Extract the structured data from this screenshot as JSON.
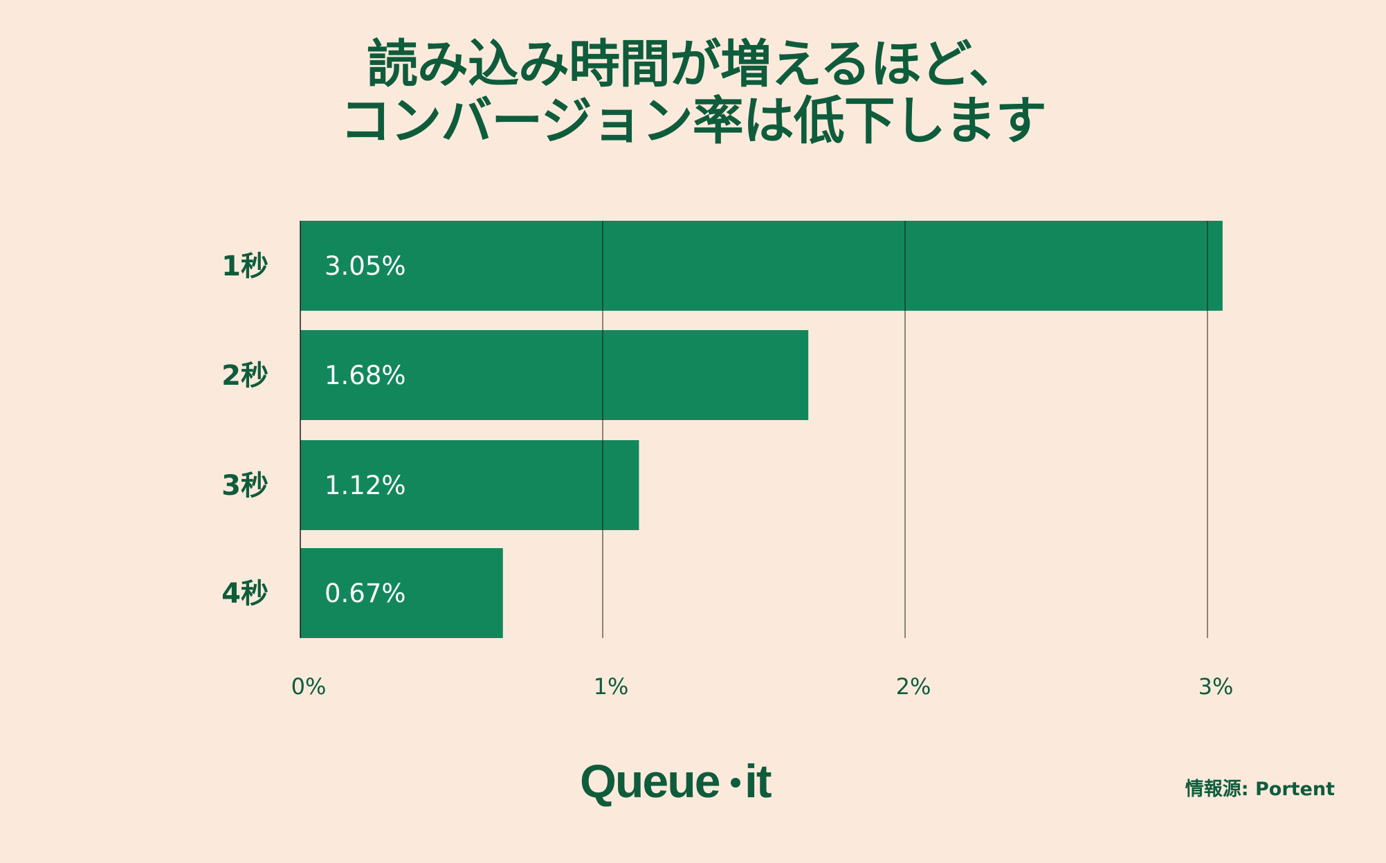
{
  "title_lines": [
    "読み込み時間が増えるほど、",
    "コンバージョン率は低下します"
  ],
  "source": "情報源: Portent",
  "logo_text": "Queue-it",
  "colors": {
    "background": "#fbeadc",
    "bar": "#13875c",
    "text_dark": "#0e5c3c",
    "bar_label": "#ffffff",
    "grid": "#1a1a1a"
  },
  "chart_data": {
    "type": "bar",
    "orientation": "horizontal",
    "categories": [
      "1秒",
      "2秒",
      "3秒",
      "4秒"
    ],
    "values": [
      3.05,
      1.68,
      1.12,
      0.67
    ],
    "value_labels": [
      "3.05%",
      "1.68%",
      "1.12%",
      "0.67%"
    ],
    "x_ticks": [
      "0%",
      "1%",
      "2%",
      "3%"
    ],
    "xlim": [
      0,
      3
    ],
    "grid": true,
    "title": "読み込み時間が増えるほど、コンバージョン率は低下します",
    "xlabel": "",
    "ylabel": ""
  }
}
